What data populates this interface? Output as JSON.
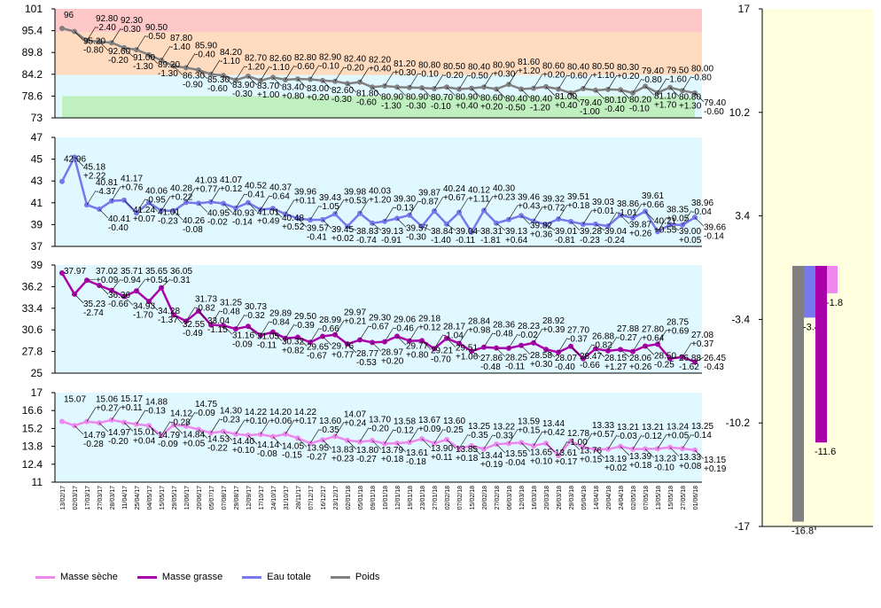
{
  "colors": {
    "masse_seche": "#ee88ee",
    "masse_grasse": "#aa00aa",
    "eau_totale": "#7777ee",
    "poids": "#808080",
    "zone_red": "#ffc8c8",
    "zone_orange": "#ffdcc0",
    "zone_green": "#c0f0c0",
    "panel_bg": "#e0f8ff",
    "right_bg": "#ffffe0"
  },
  "x_dates": [
    "13/02/17",
    "02/03/17",
    "17/03/17",
    "27/03/17",
    "28/03/17",
    "11/04/17",
    "25/04/17",
    "04/05/17",
    "15/05/17",
    "29/05/17",
    "12/06/17",
    "20/06/17",
    "05/07/17",
    "07/08/17",
    "29/08/17",
    "12/09/17",
    "17/10/17",
    "24/10/17",
    "31/10/17",
    "28/11/17",
    "07/12/17",
    "16/12/17",
    "23/12/17",
    "02/01/18",
    "05/01/18",
    "09/01/18",
    "10/01/18",
    "12/01/18",
    "19/01/18",
    "23/01/18",
    "27/01/18",
    "02/02/18",
    "07/02/18",
    "15/02/18",
    "20/02/18",
    "27/02/18",
    "06/03/18",
    "12/03/18",
    "16/03/18",
    "20/03/18",
    "26/03/18",
    "29/03/18",
    "05/04/18",
    "14/04/18",
    "20/04/18",
    "24/04/18",
    "02/05/18",
    "07/05/18",
    "13/05/18",
    "15/05/18",
    "27/05/18",
    "01/06/18"
  ],
  "legend": {
    "masse_seche": "Masse sèche",
    "masse_grasse": "Masse grasse",
    "eau_totale": "Eau totale",
    "poids": "Poids"
  },
  "chart_data": [
    {
      "type": "line",
      "series": [
        {
          "name": "Poids",
          "values": [
            96,
            95.2,
            92.8,
            92.6,
            92.3,
            91,
            90.5,
            89.2,
            87.8,
            86.3,
            85.9,
            85.3,
            84.2,
            83.9,
            82.7,
            83.7,
            82.6,
            83.4,
            82.8,
            83,
            82.9,
            82.6,
            82.4,
            81.8,
            82.2,
            80.9,
            81.2,
            80.9,
            80.8,
            80.7,
            80.5,
            80.9,
            80.4,
            80.6,
            80.9,
            80.4,
            81.6,
            80.4,
            80.6,
            81,
            80.4,
            79.4,
            80.5,
            80.1,
            80.3,
            80.2,
            79.4,
            81.1,
            79.5,
            80.8,
            80,
            79.4
          ]
        }
      ],
      "point_labels": [
        "96",
        "95.20\n-0.80",
        "92.80\n-2.40",
        "92.60\n-0.20",
        "92.30\n-0.30",
        "91.00\n-1.30",
        "90.50\n-0.50",
        "89.20\n-1.30",
        "87.80\n-1.40",
        "86.30\n-0.90",
        "85.90\n-0.40",
        "85.30\n-0.60",
        "84.20\n-1.10",
        "83.90\n-0.30",
        "82.70\n-1.20",
        "83.70\n+1.00",
        "82.60\n-1.10",
        "83.40\n+0.80",
        "82.80\n-0.60",
        "83.00\n+0.20",
        "82.90\n-0.10",
        "82.60\n-0.30",
        "82.40\n-0.20",
        "81.80\n-0.60",
        "82.20\n+0.40",
        "80.90\n-1.30",
        "81.20\n+0.30",
        "80.90\n-0.30",
        "80.80\n-0.10",
        "80.70\n-0.10",
        "80.50\n-0.20",
        "80.90\n+0.40",
        "80.40\n-0.50",
        "80.60\n+0.20",
        "80.90\n+0.30",
        "80.40\n-0.50",
        "81.60\n+1.20",
        "80.40\n-1.20",
        "80.60\n+0.20",
        "81.00\n+0.40",
        "80.40\n-0.60",
        "79.40\n-1.00",
        "80.50\n+1.10",
        "80.10\n-0.40",
        "80.30\n+0.20",
        "80.20\n-0.10",
        "79.40\n-0.80",
        "81.10\n+1.70",
        "79.50\n-1.60",
        "80.80\n+1.30",
        "80.00\n-0.80",
        "79.40\n-0.60"
      ],
      "y_ticks": [
        "73",
        "78.6",
        "84.2",
        "89.8",
        "95.4",
        "101"
      ],
      "ylim": [
        73,
        101
      ]
    },
    {
      "type": "line",
      "series": [
        {
          "name": "Eau totale",
          "values": [
            42.96,
            45.18,
            40.81,
            40.41,
            41.17,
            41.24,
            40.06,
            41.01,
            40.28,
            40.26,
            41.03,
            40.95,
            41.07,
            40.93,
            40.52,
            41.01,
            40.37,
            40.48,
            39.96,
            39.57,
            39.43,
            39.45,
            39.98,
            38.83,
            40.03,
            39.13,
            39.3,
            39.57,
            39.87,
            38.84,
            40.24,
            39.04,
            40.12,
            38.31,
            40.3,
            39.13,
            39.46,
            39.82,
            39.32,
            39.01,
            39.51,
            39.28,
            39.03,
            39.04,
            38.86,
            39.87,
            39.61,
            40.21,
            38.35,
            39,
            38.96,
            39.66
          ]
        }
      ],
      "point_labels": [
        "42.96",
        "45.18\n+2.22",
        "40.81\n-4.37",
        "40.41\n-0.40",
        "41.17\n+0.76",
        "41.24\n+0.07",
        "40.06\n-0.95",
        "41.01\n-0.23",
        "40.28\n+0.22",
        "40.26\n-0.08",
        "41.03\n+0.77",
        "40.95\n-0.02",
        "41.07\n+0.12",
        "40.93\n-0.14",
        "40.52\n-0.41",
        "41.01\n+0.49",
        "40.37\n-0.64",
        "40.48\n+0.52",
        "39.96\n+0.11",
        "39.57\n-0.41",
        "39.43\n-1.05",
        "39.45\n+0.02",
        "39.98\n+0.53",
        "38.83\n-0.74",
        "40.03\n+1.20",
        "39.13\n-0.91",
        "39.30\n-0.13",
        "39.57\n-0.30",
        "39.87\n-0.87",
        "38.84\n-1.40",
        "40.24\n+0.67",
        "39.04\n-0.11",
        "40.12\n+1.11",
        "38.31\n-1.81",
        "40.30\n+0.23",
        "39.13\n+0.64",
        "39.46\n+0.43",
        "39.82\n+0.36",
        "39.32\n+0.72",
        "39.01\n-0.81",
        "39.51\n+0.18",
        "39.28\n-0.23",
        "39.03\n+0.01",
        "39.04\n-0.24",
        "38.86\n-1.01",
        "39.87\n+0.26",
        "39.61\n+0.66",
        "40.21\n+0.55",
        "38.35\n+0.05",
        "39.00\n+0.05",
        "38.96\n-0.04",
        "39.66\n-0.14"
      ],
      "y_ticks": [
        "37",
        "39",
        "41",
        "43",
        "45",
        "47"
      ],
      "ylim": [
        37,
        47
      ]
    },
    {
      "type": "line",
      "series": [
        {
          "name": "Masse grasse",
          "values": [
            37.97,
            35.23,
            37.02,
            36.36,
            35.71,
            34.93,
            35.65,
            34.28,
            36.05,
            32.55,
            31.73,
            33.04,
            31.25,
            31.16,
            30.73,
            31.05,
            29.89,
            30.32,
            29.5,
            29.65,
            28.99,
            29.76,
            29.97,
            28.77,
            29.3,
            28.97,
            29.06,
            29.77,
            29.18,
            29.21,
            28.17,
            29.51,
            28.84,
            27.86,
            28.36,
            28.25,
            28.23,
            28.58,
            28.92,
            28.07,
            27.7,
            28.47,
            26.88,
            28.15,
            27.88,
            28.06,
            27.8,
            28.5,
            28.75,
            26.88,
            27.08,
            26.45
          ]
        }
      ],
      "point_labels": [
        "37.97",
        "35.23\n-2.74",
        "37.02\n+0.09",
        "36.36\n-0.66",
        "35.71\n-0.94",
        "34.93\n-1.70",
        "35.65\n+0.54",
        "34.28\n-1.37",
        "36.05\n-0.31",
        "32.55\n-0.49",
        "31.73\n-0.82",
        "33.04\n-1.15",
        "31.25\n-0.48",
        "31.16\n-0.09",
        "30.73\n-0.32",
        "31.05\n-0.11",
        "29.89\n-0.84",
        "30.32\n+0.82",
        "29.50\n-0.39",
        "29.65\n-0.67",
        "28.99\n-0.66",
        "29.76\n+0.77",
        "29.97\n+0.21",
        "28.77\n-0.53",
        "29.30\n-0.67",
        "28.97\n+0.20",
        "29.06\n-0.46",
        "29.77\n+0.80",
        "29.18\n+0.12",
        "29.21\n-0.70",
        "28.17\n-1.04",
        "29.51\n+1.06",
        "28.84\n+0.98",
        "27.86\n-0.48",
        "28.36\n-0.48",
        "28.25\n-0.11",
        "28.23\n-0.02",
        "28.58\n+0.30",
        "28.92\n+0.39",
        "28.07\n-0.40",
        "27.70\n-0.37",
        "28.47\n-0.66",
        "26.88\n-0.82",
        "28.15\n+1.27",
        "27.88\n-0.27",
        "28.06\n+0.26",
        "27.80\n+0.64",
        "28.50\n-0.25",
        "28.75\n+0.69",
        "26.88\n-1.62",
        "27.08\n+0.37",
        "26.45\n-0.43"
      ],
      "y_ticks": [
        "25",
        "27.8",
        "30.6",
        "33.4",
        "36.2",
        "39"
      ],
      "ylim": [
        25,
        39
      ]
    },
    {
      "type": "line",
      "series": [
        {
          "name": "Masse sèche",
          "values": [
            15.07,
            14.79,
            15.06,
            14.97,
            15.17,
            15.01,
            14.88,
            14.79,
            14.12,
            14.84,
            14.75,
            14.53,
            14.3,
            14.4,
            14.22,
            14.14,
            14.2,
            14.05,
            14.22,
            13.95,
            13.6,
            13.83,
            14.07,
            13.8,
            13.7,
            13.79,
            13.58,
            13.61,
            13.67,
            13.9,
            13.6,
            13.85,
            13.25,
            13.44,
            13.22,
            13.55,
            13.59,
            13.65,
            13.44,
            13.61,
            12.78,
            13.76,
            13.33,
            13.19,
            13.21,
            13.39,
            13.21,
            13.23,
            13.24,
            13.33,
            13.25,
            13.15
          ]
        }
      ],
      "point_labels": [
        "15.07",
        "14.79\n-0.28",
        "15.06\n+0.27",
        "14.97\n-0.20",
        "15.17\n+0.11",
        "15.01\n+0.04",
        "14.88\n-0.13",
        "14.79\n-0.09",
        "14.12\n-0.28",
        "14.84\n+0.05",
        "14.75\n-0.09",
        "14.53\n-0.22",
        "14.30\n-0.23",
        "14.40\n+0.10",
        "14.22\n+0.10",
        "14.14\n-0.08",
        "14.20\n+0.06",
        "14.05\n-0.15",
        "14.22\n+0.17",
        "13.95\n-0.27",
        "13.60\n-0.35",
        "13.83\n+0.23",
        "14.07\n+0.24",
        "13.80\n-0.27",
        "13.70\n-0.20",
        "13.79\n+0.18",
        "13.58\n-0.12",
        "13.61\n-0.18",
        "13.67\n+0.09",
        "13.90\n+0.11",
        "13.60\n-0.25",
        "13.85\n+0.18",
        "13.25\n-0.35",
        "13.44\n+0.19",
        "13.22\n-0.33",
        "13.55\n-0.04",
        "13.59\n+0.15",
        "13.65\n+0.10",
        "13.44\n+0.42",
        "13.61\n+0.17",
        "12.78\n-1.00",
        "13.76\n+0.15",
        "13.33\n+0.57",
        "13.19\n+0.02",
        "13.21\n-0.03",
        "13.39\n+0.18",
        "13.21\n-0.12",
        "13.23\n-0.10",
        "13.24\n+0.05",
        "13.33\n+0.08",
        "13.25\n-0.14",
        "13.15\n+0.19"
      ],
      "y_ticks": [
        "11",
        "12.4",
        "13.8",
        "15.2",
        "16.6",
        "17"
      ],
      "ylim": [
        11,
        17
      ]
    },
    {
      "type": "bar",
      "categories": [
        "Poids",
        "Eau totale",
        "Masse grasse",
        "Masse sèche"
      ],
      "values": [
        -16.8,
        -3.4,
        -11.6,
        -1.8
      ],
      "value_labels": [
        "-16.8",
        "-3.4",
        "-11.6",
        "-1.8"
      ],
      "y_ticks": [
        "-17",
        "-10.2",
        "-3.4",
        "3.4",
        "10.2",
        "17"
      ],
      "ylim": [
        -17,
        17
      ]
    }
  ]
}
